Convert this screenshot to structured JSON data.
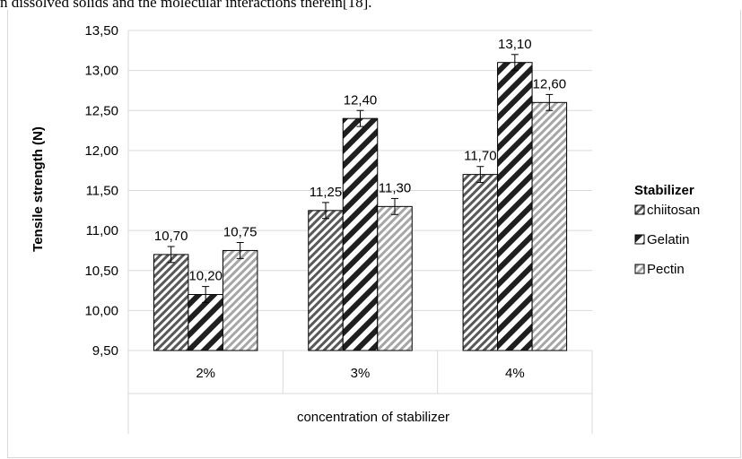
{
  "page": {
    "header_text": "n dissolved solids and the molecular interactions therein[18]."
  },
  "chart_data": {
    "type": "bar",
    "title": "",
    "xlabel": "concentration of stabilizer",
    "ylabel": "Tensile strength (N)",
    "categories": [
      "2%",
      "3%",
      "4%"
    ],
    "ylim": [
      9.5,
      13.5
    ],
    "yticks": [
      "9,50",
      "10,00",
      "10,50",
      "11,00",
      "11,50",
      "12,00",
      "12,50",
      "13,00",
      "13,50"
    ],
    "ytick_values": [
      9.5,
      10.0,
      10.5,
      11.0,
      11.5,
      12.0,
      12.5,
      13.0,
      13.5
    ],
    "grid": true,
    "error_bars": true,
    "legend": {
      "title": "Stabilizer",
      "placement": "right"
    },
    "series": [
      {
        "name": "chiitosan",
        "values": [
          10.7,
          11.25,
          11.7
        ],
        "labels": [
          "10,70",
          "11,25",
          "11,70"
        ],
        "errors": [
          0.1,
          0.1,
          0.1
        ],
        "pattern": "dense-diagonal",
        "color": "#595959"
      },
      {
        "name": "Gelatin",
        "values": [
          10.2,
          12.4,
          13.1
        ],
        "labels": [
          "10,20",
          "12,40",
          "13,10"
        ],
        "errors": [
          0.1,
          0.1,
          0.1
        ],
        "pattern": "wide-diagonal",
        "color": "#262626"
      },
      {
        "name": "Pectin",
        "values": [
          10.75,
          11.3,
          12.6
        ],
        "labels": [
          "10,75",
          "11,30",
          "12,60"
        ],
        "errors": [
          0.1,
          0.1,
          0.1
        ],
        "pattern": "light-diagonal",
        "color": "#8c8c8c"
      }
    ]
  }
}
